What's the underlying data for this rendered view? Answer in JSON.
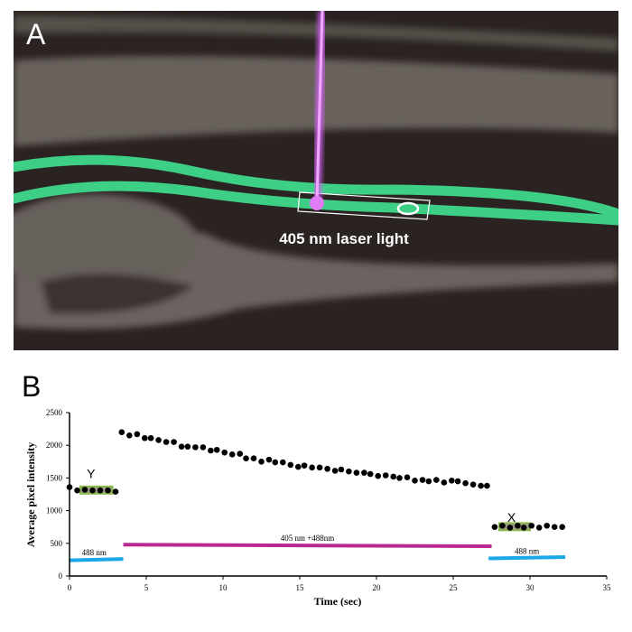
{
  "panel_a": {
    "letter": "A",
    "label": "405 nm laser light",
    "colors": {
      "background": "#2a2321",
      "tissue": "#7d7670",
      "vessel": "#3ecf86",
      "laser": "#e07cf5",
      "roi": "#ffffff"
    }
  },
  "panel_b": {
    "letter": "B"
  },
  "chart_data": {
    "type": "scatter",
    "title": "",
    "xlabel": "Time (sec)",
    "ylabel": "Average pixel intensity",
    "xlim": [
      0,
      35
    ],
    "ylim": [
      0,
      2500
    ],
    "xticks": [
      0,
      5,
      10,
      15,
      20,
      25,
      30,
      35
    ],
    "yticks": [
      0,
      500,
      1000,
      1500,
      2000,
      2500
    ],
    "grid": false,
    "point_color": "#000000",
    "series": [
      {
        "x": [
          0,
          0.5,
          1.0,
          1.5,
          2.0,
          2.5,
          3.0
        ],
        "y": [
          1360,
          1310,
          1320,
          1310,
          1310,
          1310,
          1290
        ]
      },
      {
        "x": [
          3.4,
          3.9,
          4.4,
          4.9,
          5.3,
          5.8,
          6.3,
          6.8,
          7.3,
          7.7,
          8.2,
          8.7,
          9.2,
          9.6,
          10.1,
          10.6,
          11.1,
          11.5,
          12.0,
          12.5,
          13.0,
          13.4,
          13.9,
          14.4,
          14.9,
          15.3,
          15.8,
          16.3,
          16.8,
          17.3,
          17.7,
          18.2,
          18.7,
          19.2,
          19.6,
          20.1,
          20.6,
          21.1,
          21.5,
          22.0,
          22.5,
          23.0,
          23.4,
          23.9,
          24.4,
          24.9,
          25.3,
          25.8,
          26.3,
          26.8,
          27.2
        ],
        "y": [
          2200,
          2150,
          2170,
          2110,
          2110,
          2080,
          2050,
          2050,
          1980,
          1980,
          1970,
          1970,
          1920,
          1930,
          1890,
          1860,
          1870,
          1800,
          1800,
          1750,
          1780,
          1740,
          1740,
          1700,
          1670,
          1690,
          1660,
          1660,
          1640,
          1610,
          1630,
          1600,
          1580,
          1580,
          1560,
          1530,
          1540,
          1520,
          1500,
          1510,
          1460,
          1470,
          1450,
          1470,
          1430,
          1460,
          1450,
          1420,
          1400,
          1380,
          1380
        ]
      },
      {
        "x": [
          27.7,
          28.2,
          28.7,
          29.2,
          29.6,
          30.1,
          30.6,
          31.1,
          31.6,
          32.1
        ],
        "y": [
          750,
          770,
          740,
          770,
          740,
          770,
          740,
          770,
          750,
          750
        ]
      }
    ],
    "annotations": [
      {
        "text": "Y",
        "x": 1.4,
        "y": 1500
      },
      {
        "text": "X",
        "x": 28.8,
        "y": 830
      },
      {
        "text": "488 nm",
        "x": 1.6,
        "y": 320
      },
      {
        "text": "405 nm +488nm",
        "x": 15.5,
        "y": 540
      },
      {
        "text": "488 nm",
        "x": 29.8,
        "y": 340
      }
    ],
    "highlight_boxes": [
      {
        "label": "Y",
        "x_range": [
          0.7,
          2.8
        ],
        "y_range": [
          1260,
          1370
        ]
      },
      {
        "label": "X",
        "x_range": [
          28.0,
          30.0
        ],
        "y_range": [
          700,
          810
        ]
      }
    ],
    "illumination_bars": [
      {
        "label": "488 nm",
        "x_range": [
          0,
          3.5
        ],
        "y": [
          240,
          260
        ],
        "color": "#1aa8e8"
      },
      {
        "label": "405 nm +488nm",
        "x_range": [
          3.5,
          27.5
        ],
        "y": [
          480,
          455
        ],
        "color": "#b8288e"
      },
      {
        "label": "488 nm",
        "x_range": [
          27.3,
          32.3
        ],
        "y": [
          270,
          290
        ],
        "color": "#1aa8e8"
      }
    ],
    "box_color": "#8ab84a"
  }
}
